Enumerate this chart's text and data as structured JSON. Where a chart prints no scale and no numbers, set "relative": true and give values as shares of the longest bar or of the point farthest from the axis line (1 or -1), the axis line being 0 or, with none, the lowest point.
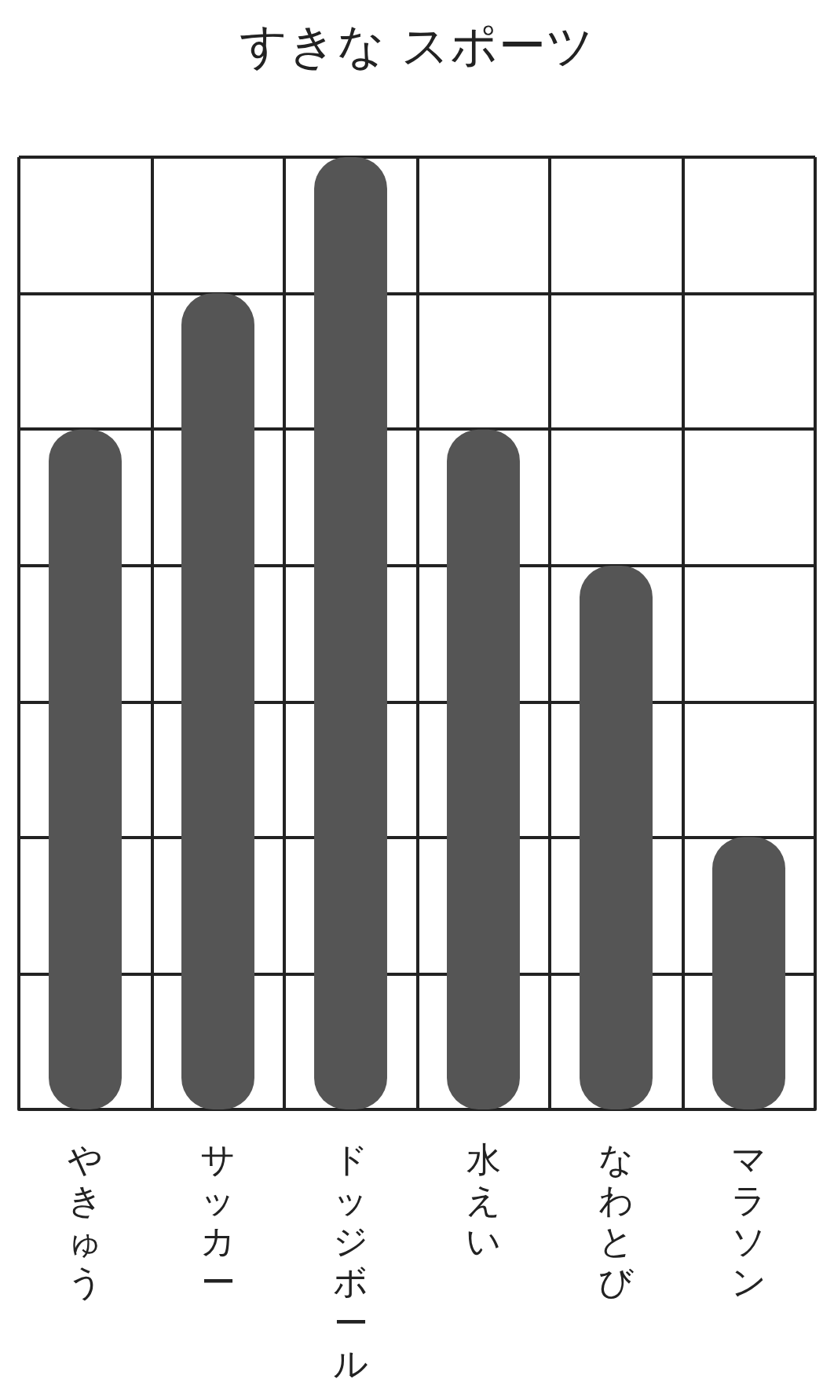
{
  "chart_data": {
    "type": "bar",
    "title": "すきな スポーツ",
    "categories": [
      "やきゅう",
      "サッカー",
      "ドッジボール",
      "水えい",
      "なわとび",
      "マラソン"
    ],
    "values": [
      0.714,
      0.857,
      1,
      0.714,
      0.571,
      0.286
    ],
    "color": "#555555",
    "relative": true,
    "grid": true
  }
}
